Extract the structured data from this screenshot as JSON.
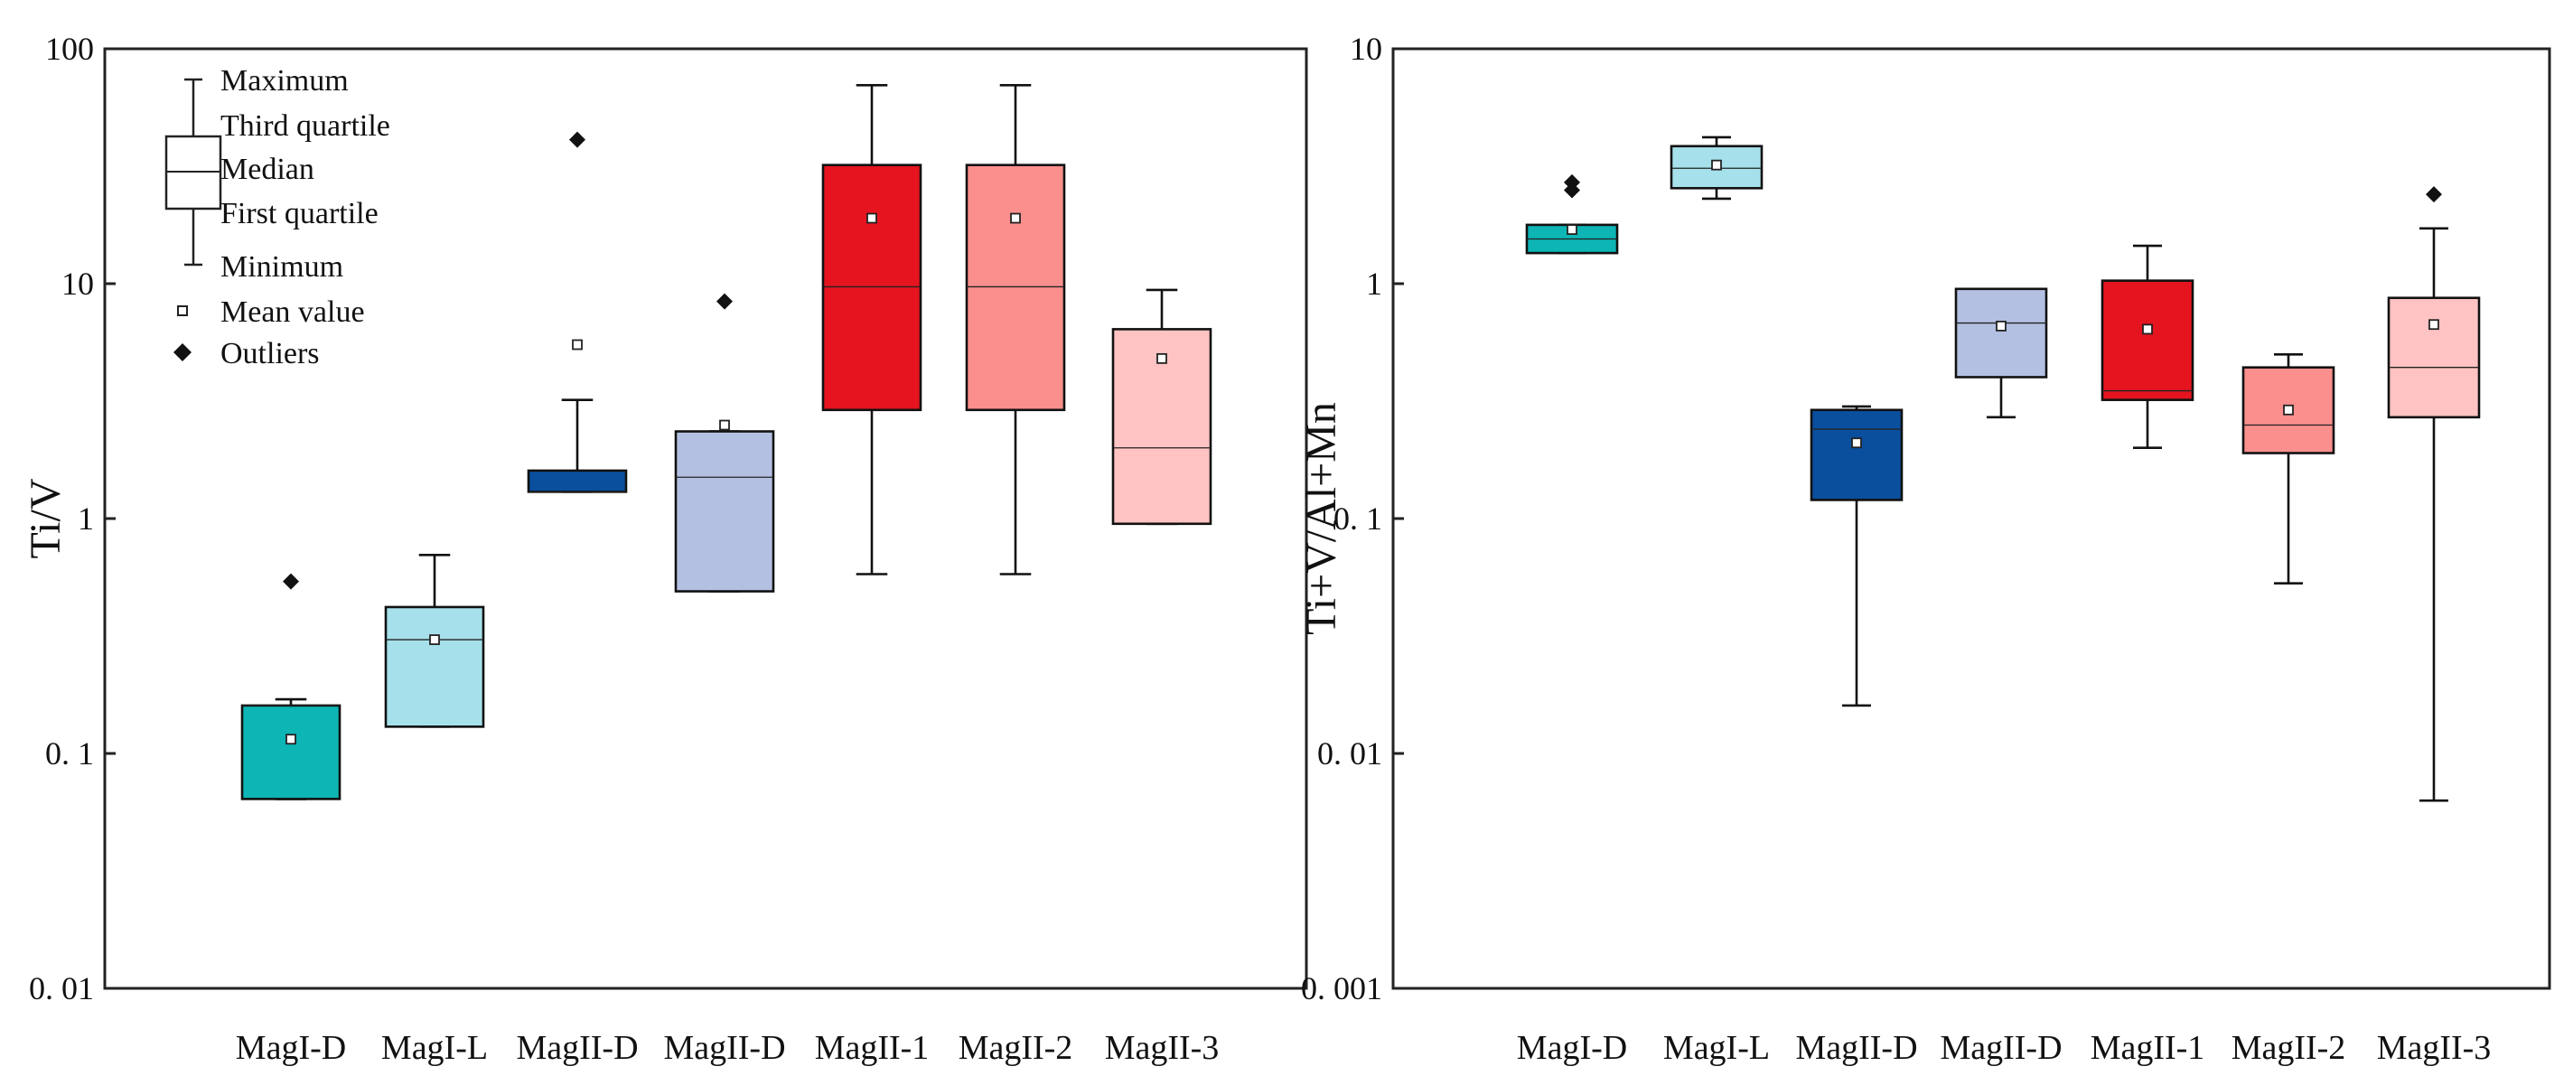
{
  "chart_data": [
    {
      "type": "box",
      "scale": "log",
      "ylabel": "Ti/V",
      "ylim": [
        0.01,
        100
      ],
      "yticks": [
        {
          "value": 0.01,
          "label": "0. 01"
        },
        {
          "value": 0.1,
          "label": "0. 1"
        },
        {
          "value": 1,
          "label": "1"
        },
        {
          "value": 10,
          "label": "10"
        },
        {
          "value": 100,
          "label": "100"
        }
      ],
      "categories": [
        "MagI-D",
        "MagI-L",
        "MagII-D",
        "MagII-D",
        "MagII-1",
        "MagII-2",
        "MagII-3"
      ],
      "boxes": [
        {
          "color": "#0db5b5",
          "min": 0.064,
          "q1": 0.064,
          "median": 0.16,
          "q3": 0.16,
          "max": 0.17,
          "mean": 0.115,
          "outliers": [
            0.54
          ]
        },
        {
          "color": "#a6e0ea",
          "min": 0.13,
          "q1": 0.13,
          "median": 0.305,
          "q3": 0.42,
          "max": 0.7,
          "mean": 0.305,
          "outliers": []
        },
        {
          "color": "#0a4f9e",
          "min": 1.3,
          "q1": 1.3,
          "median": 1.3,
          "q3": 1.6,
          "max": 3.2,
          "mean": 5.5,
          "outliers": [
            41
          ]
        },
        {
          "color": "#b3c0e2",
          "min": 0.49,
          "q1": 0.49,
          "median": 1.5,
          "q3": 2.35,
          "max": 2.35,
          "mean": 2.5,
          "outliers": [
            8.4
          ]
        },
        {
          "color": "#e5141f",
          "min": 0.58,
          "q1": 2.9,
          "median": 9.7,
          "q3": 32,
          "max": 70,
          "mean": 19,
          "outliers": []
        },
        {
          "color": "#fb8f8e",
          "min": 0.58,
          "q1": 2.9,
          "median": 9.7,
          "q3": 32,
          "max": 70,
          "mean": 19,
          "outliers": []
        },
        {
          "color": "#fec3c2",
          "min": 0.95,
          "q1": 0.95,
          "median": 2.0,
          "q3": 6.4,
          "max": 9.4,
          "mean": 4.8,
          "outliers": []
        }
      ]
    },
    {
      "type": "box",
      "scale": "log",
      "ylabel": "Ti+V/Al+Mn",
      "ylim": [
        0.001,
        10
      ],
      "yticks": [
        {
          "value": 0.001,
          "label": "0. 001"
        },
        {
          "value": 0.01,
          "label": "0. 01"
        },
        {
          "value": 0.1,
          "label": "0. 1"
        },
        {
          "value": 1,
          "label": "1"
        },
        {
          "value": 10,
          "label": "10"
        }
      ],
      "categories": [
        "MagI-D",
        "MagI-L",
        "MagII-D",
        "MagII-D",
        "MagII-1",
        "MagII-2",
        "MagII-3"
      ],
      "boxes": [
        {
          "color": "#0db5b5",
          "min": 1.35,
          "q1": 1.35,
          "median": 1.55,
          "q3": 1.78,
          "max": 1.78,
          "mean": 1.7,
          "outliers": [
            2.5,
            2.7
          ]
        },
        {
          "color": "#a6e0ea",
          "min": 2.3,
          "q1": 2.55,
          "median": 3.1,
          "q3": 3.85,
          "max": 4.2,
          "mean": 3.2,
          "outliers": []
        },
        {
          "color": "#0a4f9e",
          "min": 0.016,
          "q1": 0.12,
          "median": 0.24,
          "q3": 0.29,
          "max": 0.3,
          "mean": 0.21,
          "outliers": []
        },
        {
          "color": "#b3c0e2",
          "min": 0.27,
          "q1": 0.4,
          "median": 0.68,
          "q3": 0.95,
          "max": 0.95,
          "mean": 0.66,
          "outliers": []
        },
        {
          "color": "#e5141f",
          "min": 0.2,
          "q1": 0.32,
          "median": 0.35,
          "q3": 1.03,
          "max": 1.45,
          "mean": 0.64,
          "outliers": []
        },
        {
          "color": "#fb8f8e",
          "min": 0.053,
          "q1": 0.19,
          "median": 0.25,
          "q3": 0.44,
          "max": 0.5,
          "mean": 0.29,
          "outliers": []
        },
        {
          "color": "#fec3c2",
          "min": 0.0063,
          "q1": 0.27,
          "median": 0.44,
          "q3": 0.87,
          "max": 1.72,
          "mean": 0.67,
          "outliers": [
            2.4
          ]
        }
      ]
    }
  ],
  "legend": {
    "maximum": "Maximum",
    "third_quartile": "Third quartile",
    "median": "Median",
    "first_quartile": "First quartile",
    "minimum": "Minimum",
    "mean_value": "Mean value",
    "outliers": "Outliers"
  }
}
